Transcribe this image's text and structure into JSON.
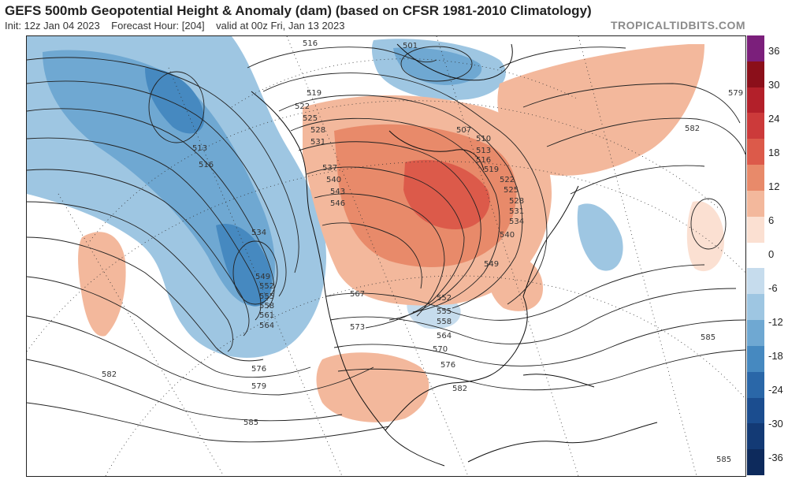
{
  "header": {
    "title": "GEFS 500mb Geopotential Height & Anomaly (dam) (based on CFSR 1981-2010 Climatology)",
    "init": "Init: 12z Jan 04 2023",
    "forecast_hour": "Forecast Hour: [204]",
    "valid": "valid at 00z Fri, Jan 13 2023",
    "brand": "TROPICALTIDBITS.COM"
  },
  "colorbar": {
    "labels": [
      "36",
      "30",
      "24",
      "18",
      "12",
      "6",
      "0",
      "-6",
      "-12",
      "-18",
      "-24",
      "-30",
      "-36"
    ],
    "colors": [
      "#7b1f7b",
      "#8b0f1a",
      "#b3202a",
      "#cc3a3a",
      "#dc5a4a",
      "#e88a6a",
      "#f3b89c",
      "#fbe0d2",
      "#ffffff",
      "#c6dced",
      "#9ec6e2",
      "#6fa8d2",
      "#4689c0",
      "#2a67a8",
      "#1b4d8f",
      "#133a75",
      "#0d2a5c"
    ]
  },
  "map": {
    "contour_labels": [
      "516",
      "501",
      "519",
      "522",
      "525",
      "528",
      "531",
      "507",
      "510",
      "513",
      "516",
      "519",
      "522",
      "525",
      "528",
      "531",
      "534",
      "537",
      "540",
      "543",
      "546",
      "534",
      "540",
      "549",
      "549",
      "552",
      "555",
      "558",
      "561",
      "564",
      "567",
      "573",
      "552",
      "555",
      "558",
      "564",
      "570",
      "576",
      "576",
      "579",
      "582",
      "585",
      "513",
      "516",
      "579",
      "582",
      "585",
      "585",
      "582"
    ]
  }
}
